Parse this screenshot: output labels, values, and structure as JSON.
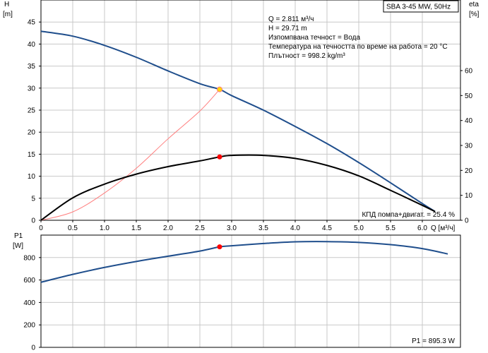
{
  "chart_data": [
    {
      "type": "line",
      "title": "SBA 3-45 MW, 50Hz",
      "xlabel": "Q [м³/ч]",
      "ylabel_left_symbol": "H",
      "ylabel_left_unit": "[m]",
      "ylabel_right_symbol": "eta",
      "ylabel_right_unit": "[%]",
      "xlim": [
        0,
        6.6
      ],
      "ylim_left": [
        0,
        50
      ],
      "ylim_right": [
        0,
        88.3
      ],
      "x_ticks": [
        "0",
        "0.5",
        "1.0",
        "1.5",
        "2.0",
        "2.5",
        "3.0",
        "3.5",
        "4.0",
        "4.5",
        "5.0",
        "5.5",
        "6.0"
      ],
      "y_left_ticks": [
        "0",
        "5",
        "10",
        "15",
        "20",
        "25",
        "30",
        "35",
        "40",
        "45"
      ],
      "y_right_ticks": [
        "0",
        "10",
        "20",
        "30",
        "40",
        "50",
        "60"
      ],
      "grid": true,
      "info_lines": [
        "Q = 2.811 м³/ч",
        "H = 29.71 m",
        "Изпомпвана течност = Вода",
        "Температура на течността по време на работа = 20 °C",
        "Плътност = 998.2 kg/m³"
      ],
      "efficiency_label": "КПД помпа+двигат. = 25.4 %",
      "colors": {
        "head": "#1f4e8c",
        "efficiency": "#000000",
        "system": "#ff7f7f",
        "point": "#ff0000",
        "duty": "#ffd700"
      },
      "series": [
        {
          "axis": "left",
          "x": [
            0,
            0.5,
            1.0,
            1.5,
            2.0,
            2.5,
            2.811,
            3.0,
            3.5,
            4.0,
            4.5,
            5.0,
            5.5,
            6.0,
            6.2
          ],
          "values": [
            42.9,
            41.8,
            39.7,
            37.0,
            33.9,
            31.0,
            29.71,
            28.3,
            25.0,
            21.3,
            17.4,
            13.1,
            8.5,
            3.8,
            2.0
          ]
        },
        {
          "axis": "right",
          "x": [
            0,
            0.5,
            1.0,
            1.5,
            2.0,
            2.5,
            2.811,
            3.0,
            3.5,
            4.0,
            4.5,
            5.0,
            5.5,
            6.0,
            6.2
          ],
          "values": [
            0,
            9.0,
            14.5,
            18.5,
            21.5,
            23.8,
            25.4,
            26.0,
            26.0,
            24.8,
            22.0,
            17.8,
            12.0,
            6.0,
            3.5
          ]
        },
        {
          "axis": "left",
          "x": [
            0,
            0.5,
            1.0,
            1.5,
            2.0,
            2.5,
            2.811
          ],
          "values": [
            0,
            1.9,
            6.2,
            11.8,
            18.5,
            24.8,
            29.71
          ]
        }
      ],
      "duty_point": {
        "x": 2.811,
        "y": 29.71
      },
      "efficiency_point": {
        "x": 2.811,
        "y": 25.4
      }
    },
    {
      "type": "line",
      "ylabel_symbol": "P1",
      "ylabel_unit": "[W]",
      "xlim": [
        0,
        6.6
      ],
      "ylim": [
        0,
        1000
      ],
      "y_ticks": [
        "0",
        "200",
        "400",
        "600",
        "800"
      ],
      "grid": true,
      "power_label": "P1 = 895.3 W",
      "colors": {
        "power": "#1f4e8c",
        "point": "#ff0000"
      },
      "series": [
        {
          "x": [
            0,
            0.5,
            1.0,
            1.5,
            2.0,
            2.5,
            2.811,
            3.0,
            3.5,
            4.0,
            4.5,
            5.0,
            5.5,
            6.0,
            6.4
          ],
          "values": [
            580,
            650,
            712,
            765,
            812,
            858,
            895.3,
            905,
            925,
            940,
            942,
            935,
            915,
            880,
            832
          ]
        }
      ],
      "operating_point": {
        "x": 2.811,
        "y": 895.3
      }
    }
  ]
}
